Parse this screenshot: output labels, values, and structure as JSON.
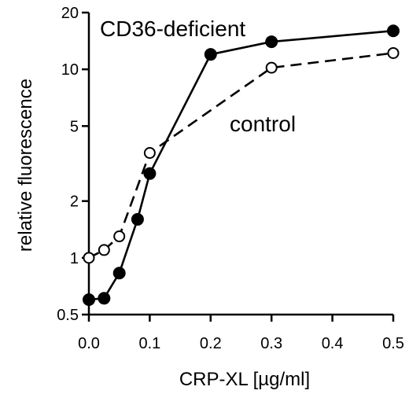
{
  "chart_data": {
    "type": "line",
    "xlabel": "CRP-XL [µg/ml]",
    "ylabel": "relative fluorescence",
    "yscale": "log",
    "xlim": [
      0,
      0.5
    ],
    "ylim": [
      0.5,
      20
    ],
    "x_ticks": [
      0.0,
      0.1,
      0.2,
      0.3,
      0.4,
      0.5
    ],
    "x_tick_labels": [
      "0.0",
      "0.1",
      "0.2",
      "0.3",
      "0.4",
      "0.5"
    ],
    "y_ticks": [
      0.5,
      1,
      2,
      5,
      10,
      20
    ],
    "y_tick_labels": [
      "0.5",
      "1",
      "2",
      "5",
      "10",
      "20"
    ],
    "grid": false,
    "legend": "none",
    "series": [
      {
        "name": "CD36-deficient",
        "marker": "filled-circle",
        "line": "solid",
        "color": "#000000",
        "x": [
          0.0,
          0.025,
          0.05,
          0.08,
          0.1,
          0.2,
          0.3,
          0.5
        ],
        "y": [
          0.6,
          0.61,
          0.83,
          1.6,
          2.8,
          12,
          14,
          16
        ]
      },
      {
        "name": "control",
        "marker": "open-circle",
        "line": "dashed",
        "color": "#000000",
        "x": [
          0.0,
          0.025,
          0.05,
          0.1,
          0.3,
          0.5
        ],
        "y": [
          1.0,
          1.1,
          1.3,
          3.6,
          10.2,
          12.2
        ]
      }
    ]
  }
}
